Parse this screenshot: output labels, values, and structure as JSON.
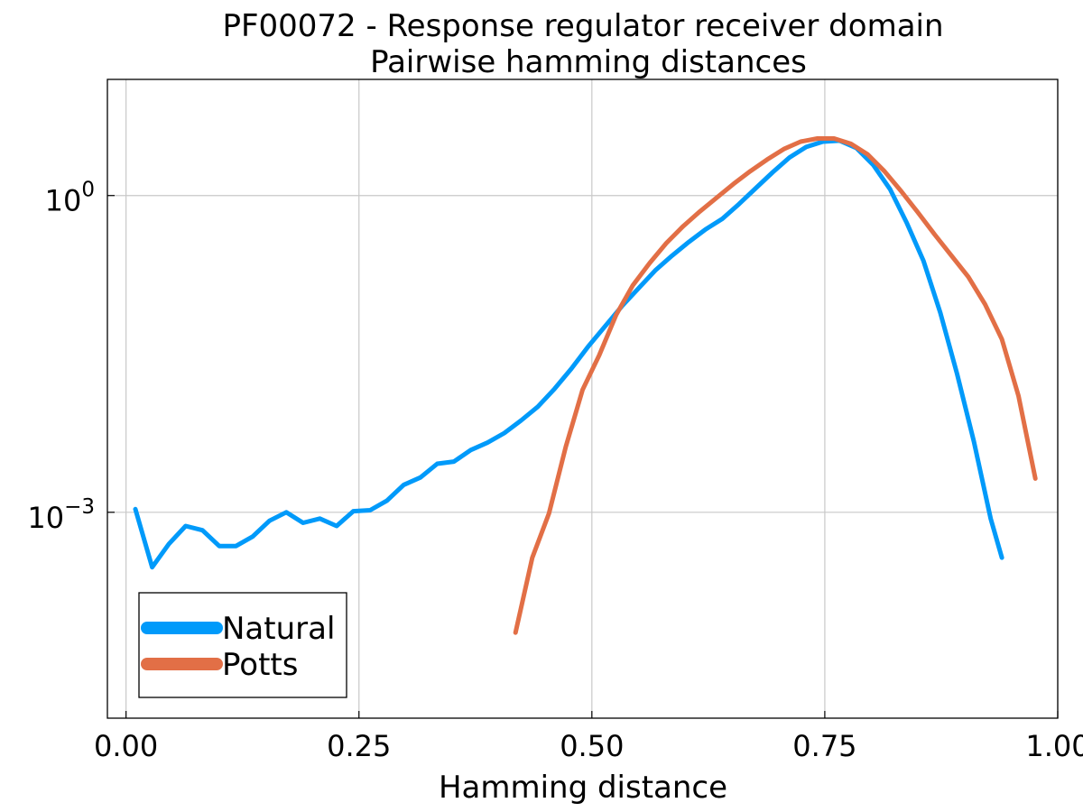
{
  "chart_data": {
    "type": "line",
    "title": "PF00072 - Response regulator receiver domain",
    "subtitle": "Pairwise hamming distances",
    "xlabel": "Hamming distance",
    "ylabel": "",
    "xlim": [
      -0.02,
      1.0
    ],
    "ylim_log10": [
      -4.95,
      1.1
    ],
    "y_scale": "log",
    "grid": true,
    "legend_position": "bottom-left",
    "x_ticks": [
      {
        "value": 0.0,
        "label": "0.00"
      },
      {
        "value": 0.25,
        "label": "0.25"
      },
      {
        "value": 0.5,
        "label": "0.50"
      },
      {
        "value": 0.75,
        "label": "0.75"
      },
      {
        "value": 1.0,
        "label": "1.00"
      }
    ],
    "y_ticks": [
      {
        "value_log10": 0,
        "base": "10",
        "exp": "0"
      },
      {
        "value_log10": -3,
        "base": "10",
        "exp": "−3"
      }
    ],
    "series": [
      {
        "name": "Natural",
        "color": "#009AFA",
        "x": [
          0.01,
          0.028,
          0.046,
          0.064,
          0.082,
          0.1,
          0.118,
          0.136,
          0.154,
          0.172,
          0.19,
          0.208,
          0.226,
          0.244,
          0.262,
          0.28,
          0.298,
          0.316,
          0.334,
          0.352,
          0.37,
          0.388,
          0.406,
          0.424,
          0.442,
          0.46,
          0.478,
          0.496,
          0.514,
          0.532,
          0.55,
          0.568,
          0.586,
          0.604,
          0.622,
          0.64,
          0.658,
          0.676,
          0.694,
          0.712,
          0.73,
          0.748,
          0.766,
          0.784,
          0.802,
          0.82,
          0.838,
          0.856,
          0.874,
          0.892,
          0.91,
          0.928,
          0.94
        ],
        "log10_values": [
          -2.97,
          -3.52,
          -3.3,
          -3.13,
          -3.17,
          -3.32,
          -3.32,
          -3.23,
          -3.08,
          -3.0,
          -3.1,
          -3.06,
          -3.13,
          -2.99,
          -2.98,
          -2.89,
          -2.74,
          -2.67,
          -2.54,
          -2.52,
          -2.41,
          -2.34,
          -2.25,
          -2.13,
          -2.0,
          -1.83,
          -1.64,
          -1.43,
          -1.24,
          -1.05,
          -0.88,
          -0.71,
          -0.57,
          -0.44,
          -0.32,
          -0.22,
          -0.08,
          0.07,
          0.22,
          0.36,
          0.46,
          0.51,
          0.52,
          0.45,
          0.29,
          0.06,
          -0.26,
          -0.62,
          -1.11,
          -1.69,
          -2.33,
          -3.06,
          -3.43
        ]
      },
      {
        "name": "Potts",
        "color": "#E26F46",
        "x": [
          0.418,
          0.436,
          0.454,
          0.472,
          0.49,
          0.508,
          0.526,
          0.544,
          0.562,
          0.58,
          0.598,
          0.616,
          0.634,
          0.652,
          0.67,
          0.688,
          0.706,
          0.724,
          0.742,
          0.76,
          0.778,
          0.796,
          0.814,
          0.832,
          0.85,
          0.868,
          0.886,
          0.904,
          0.922,
          0.94,
          0.958,
          0.976
        ],
        "log10_values": [
          -4.14,
          -3.43,
          -3.01,
          -2.38,
          -1.84,
          -1.51,
          -1.13,
          -0.85,
          -0.64,
          -0.45,
          -0.29,
          -0.15,
          -0.02,
          0.11,
          0.23,
          0.34,
          0.44,
          0.51,
          0.54,
          0.54,
          0.49,
          0.39,
          0.23,
          0.04,
          -0.16,
          -0.37,
          -0.57,
          -0.77,
          -1.03,
          -1.36,
          -1.9,
          -2.68
        ]
      }
    ]
  }
}
